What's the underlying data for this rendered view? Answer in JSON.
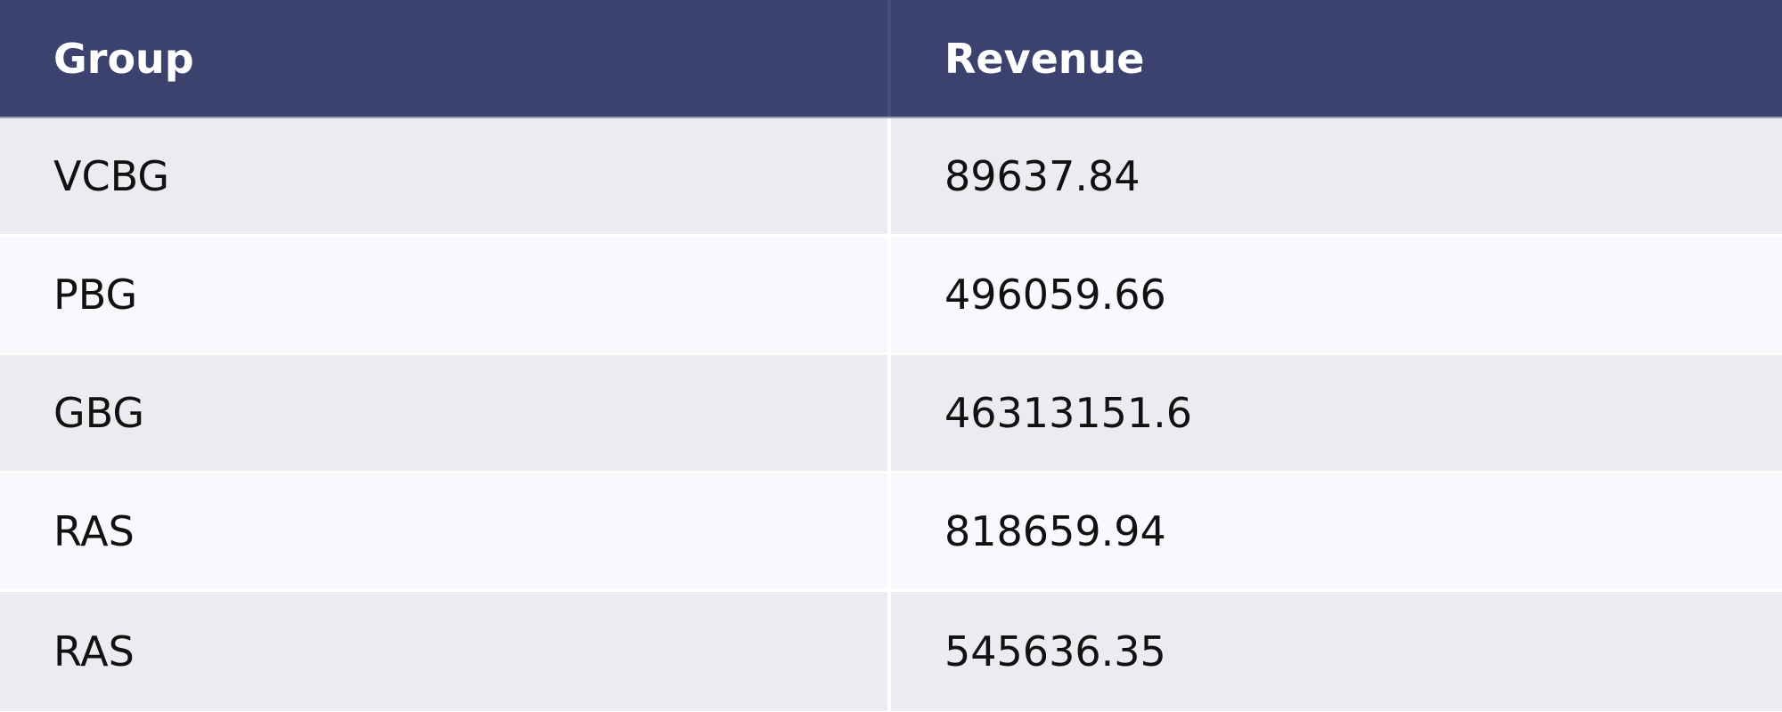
{
  "table": {
    "columns": [
      "Group",
      "Revenue"
    ],
    "rows": [
      {
        "group": "VCBG",
        "revenue": "89637.84"
      },
      {
        "group": "PBG",
        "revenue": "496059.66"
      },
      {
        "group": "GBG",
        "revenue": "46313151.6"
      },
      {
        "group": "RAS",
        "revenue": "818659.94"
      },
      {
        "group": "RAS",
        "revenue": "545636.35"
      }
    ]
  },
  "colors": {
    "header_bg": "#3b426d",
    "row_odd_bg": "#ebecf0",
    "row_even_bg": "#f8f9fd",
    "header_text": "#ffffff",
    "body_text": "#111111"
  }
}
